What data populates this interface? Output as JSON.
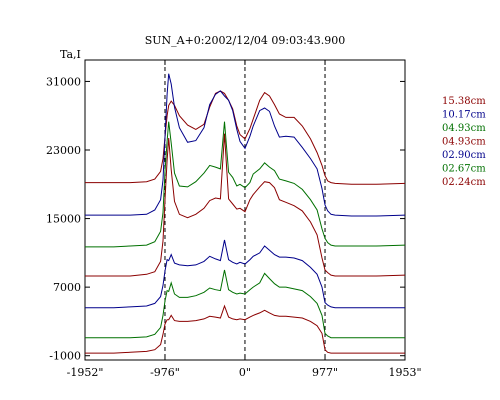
{
  "chart_data": {
    "type": "line",
    "title": "SUN_A+0:2002/12/04 09:03:43.900",
    "ylabel": "Ta,I",
    "xlabel": "",
    "x_ticks": [
      {
        "value": -1952,
        "label": "-1952\""
      },
      {
        "value": -976,
        "label": "-976\""
      },
      {
        "value": 0,
        "label": "0\""
      },
      {
        "value": 977,
        "label": "977\""
      },
      {
        "value": 1953,
        "label": "1953\""
      }
    ],
    "y_ticks": [
      {
        "value": -1000,
        "label": "-1000"
      },
      {
        "value": 7000,
        "label": "7000"
      },
      {
        "value": 15000,
        "label": "15000"
      },
      {
        "value": 23000,
        "label": "23000"
      },
      {
        "value": 31000,
        "label": "31000"
      }
    ],
    "xlim": [
      -1952,
      1953
    ],
    "ylim": [
      -1500,
      33500
    ],
    "dashed_verticals": [
      -976,
      0,
      977
    ],
    "grid": false,
    "legend_position": "right",
    "x": [
      -1952,
      -1600,
      -1400,
      -1200,
      -1100,
      -1030,
      -1000,
      -976,
      -950,
      -930,
      -900,
      -860,
      -800,
      -700,
      -600,
      -500,
      -430,
      -360,
      -300,
      -250,
      -200,
      -150,
      -100,
      -60,
      0,
      60,
      100,
      180,
      240,
      300,
      360,
      420,
      500,
      600,
      700,
      800,
      880,
      940,
      977,
      1010,
      1050,
      1100,
      1300,
      1600,
      1953
    ],
    "series": [
      {
        "name": "15.38cm",
        "color": "#8b0000",
        "values": [
          19200,
          19200,
          19200,
          19300,
          19600,
          20500,
          22000,
          24500,
          27000,
          28200,
          28700,
          28200,
          27000,
          25900,
          25400,
          26000,
          28000,
          29600,
          29900,
          29600,
          28800,
          27800,
          25800,
          24800,
          24300,
          25500,
          26600,
          28800,
          29700,
          29300,
          28300,
          27200,
          26800,
          26800,
          25800,
          24300,
          22700,
          21200,
          20000,
          19400,
          19200,
          19100,
          19000,
          19000,
          19100
        ]
      },
      {
        "name": "10.17cm",
        "color": "#00008b",
        "values": [
          15400,
          15400,
          15400,
          15500,
          16000,
          17200,
          19500,
          24500,
          29500,
          31900,
          30700,
          28000,
          25600,
          23900,
          24100,
          25600,
          28300,
          29500,
          29900,
          29300,
          28800,
          27600,
          25400,
          24000,
          23200,
          24600,
          25800,
          27600,
          27900,
          27500,
          25800,
          24500,
          24600,
          24500,
          23300,
          22000,
          20800,
          18500,
          16600,
          15900,
          15500,
          15400,
          15300,
          15300,
          15400
        ]
      },
      {
        "name": "04.93cm",
        "color": "#007000",
        "values": [
          11700,
          11700,
          11800,
          11900,
          12300,
          13500,
          15700,
          20500,
          24000,
          26300,
          23800,
          20300,
          18800,
          18700,
          19300,
          20300,
          21200,
          21000,
          20800,
          26300,
          20400,
          19800,
          18800,
          19000,
          18600,
          19200,
          20200,
          20800,
          21500,
          21000,
          20600,
          19600,
          19400,
          19100,
          18400,
          17200,
          16000,
          13800,
          12700,
          12200,
          11900,
          11800,
          11800,
          11800,
          11900
        ]
      },
      {
        "name": "04.93cm",
        "color": "#8b0000",
        "values": [
          8300,
          8300,
          8300,
          8500,
          8800,
          10000,
          12400,
          17200,
          21800,
          24400,
          20700,
          17000,
          15500,
          15100,
          15500,
          16200,
          17100,
          17400,
          17300,
          24900,
          17300,
          16700,
          16100,
          16200,
          15800,
          17200,
          17800,
          18700,
          19300,
          19200,
          18600,
          17200,
          16900,
          16500,
          15900,
          14600,
          13100,
          10400,
          9000,
          8700,
          8400,
          8300,
          8300,
          8300,
          8400
        ]
      },
      {
        "name": "02.90cm",
        "color": "#00008b",
        "values": [
          4600,
          4600,
          4700,
          4800,
          5100,
          5900,
          7200,
          8900,
          10200,
          10100,
          10800,
          9800,
          9600,
          9500,
          9600,
          10000,
          10600,
          10300,
          10100,
          12500,
          10200,
          9900,
          9700,
          9900,
          9700,
          10200,
          10600,
          11000,
          11800,
          11300,
          10800,
          10500,
          10500,
          10400,
          10100,
          9300,
          8500,
          7000,
          5200,
          4900,
          4700,
          4600,
          4600,
          4600,
          4600
        ]
      },
      {
        "name": "02.67cm",
        "color": "#007000",
        "values": [
          1100,
          1100,
          1100,
          1200,
          1500,
          2300,
          3700,
          5400,
          6600,
          6500,
          7500,
          6200,
          5800,
          5800,
          6000,
          6400,
          6900,
          6700,
          6600,
          9000,
          6700,
          6400,
          6200,
          6300,
          6200,
          6700,
          7000,
          7500,
          8600,
          8000,
          7400,
          7000,
          7000,
          6800,
          6600,
          5900,
          5100,
          3700,
          1600,
          1300,
          1100,
          1100,
          1100,
          1100,
          1100
        ]
      },
      {
        "name": "02.24cm",
        "color": "#8b0000",
        "values": [
          -700,
          -700,
          -600,
          -500,
          -300,
          300,
          1500,
          2700,
          3200,
          3200,
          3700,
          3100,
          3000,
          3000,
          3100,
          3300,
          3600,
          3500,
          3400,
          4800,
          3500,
          3300,
          3200,
          3300,
          3200,
          3500,
          3700,
          4000,
          4300,
          4000,
          3700,
          3600,
          3600,
          3500,
          3400,
          3000,
          2500,
          1600,
          -300,
          -600,
          -700,
          -700,
          -700,
          -700,
          -700
        ]
      }
    ]
  }
}
